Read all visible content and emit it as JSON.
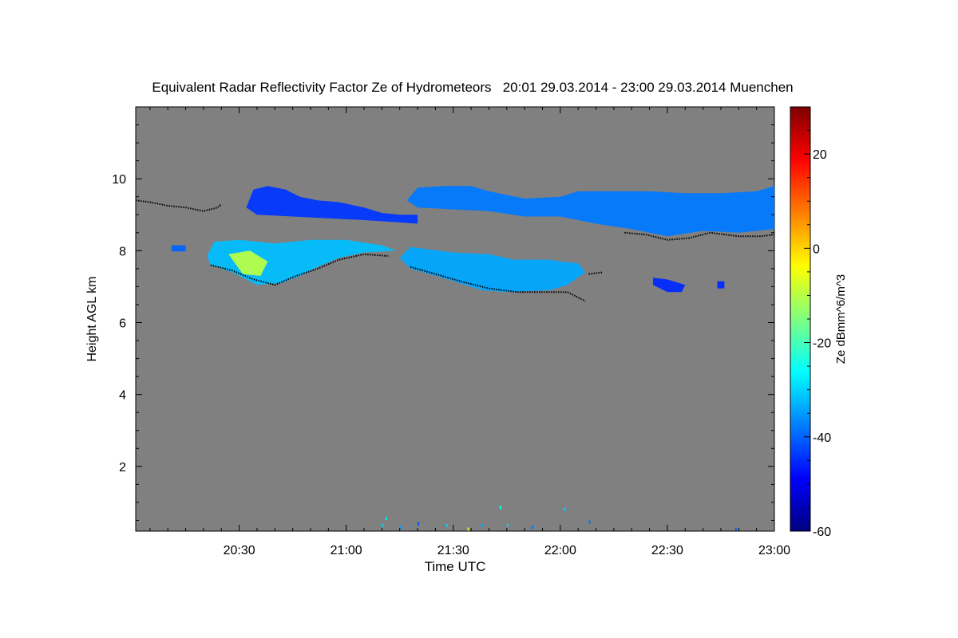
{
  "chart_data": {
    "type": "heatmap",
    "title": "Equivalent Radar Reflectivity Factor Ze of Hydrometeors   20:01 29.03.2014 - 23:00 29.03.2014 Muenchen",
    "xlabel": "Time UTC",
    "ylabel": "Height AGL km",
    "colorbar_label": "Ze dBmm^6/m^3",
    "x_range": [
      "20:01",
      "23:00"
    ],
    "x_ticks": [
      "20:30",
      "21:00",
      "21:30",
      "22:00",
      "22:30",
      "23:00"
    ],
    "y_range": [
      0.2,
      12
    ],
    "y_ticks": [
      "2",
      "4",
      "6",
      "8",
      "10"
    ],
    "colorbar_range": [
      -60,
      30
    ],
    "colorbar_ticks": [
      "-60",
      "-40",
      "-20",
      "0",
      "20"
    ],
    "background_color": "#808080",
    "colormap": [
      "#00007f",
      "#0000ff",
      "#007fff",
      "#00ffff",
      "#7fff7f",
      "#ffff00",
      "#ff7f00",
      "#ff0000",
      "#7f0000"
    ],
    "echo_regions": [
      {
        "name": "upper-cloud-west",
        "points": [
          [
            "20:32",
            9.2
          ],
          [
            "20:34",
            9.7
          ],
          [
            "20:38",
            9.8
          ],
          [
            "20:43",
            9.7
          ],
          [
            "20:47",
            9.5
          ],
          [
            "20:52",
            9.4
          ],
          [
            "20:58",
            9.35
          ],
          [
            "21:05",
            9.2
          ],
          [
            "21:10",
            9.05
          ],
          [
            "21:15",
            9.0
          ],
          [
            "21:20",
            9.0
          ],
          [
            "21:20",
            8.75
          ],
          [
            "21:13",
            8.8
          ],
          [
            "21:05",
            8.85
          ],
          [
            "20:55",
            8.9
          ],
          [
            "20:45",
            8.95
          ],
          [
            "20:35",
            9.0
          ]
        ],
        "dbz": -44
      },
      {
        "name": "upper-cloud-east",
        "points": [
          [
            "21:17",
            9.4
          ],
          [
            "21:20",
            9.75
          ],
          [
            "21:27",
            9.8
          ],
          [
            "21:35",
            9.8
          ],
          [
            "21:40",
            9.65
          ],
          [
            "21:50",
            9.45
          ],
          [
            "22:00",
            9.5
          ],
          [
            "22:05",
            9.65
          ],
          [
            "22:15",
            9.65
          ],
          [
            "22:25",
            9.65
          ],
          [
            "22:35",
            9.6
          ],
          [
            "22:45",
            9.6
          ],
          [
            "22:55",
            9.65
          ],
          [
            "23:00",
            9.8
          ],
          [
            "23:00",
            8.6
          ],
          [
            "22:50",
            8.5
          ],
          [
            "22:40",
            8.55
          ],
          [
            "22:30",
            8.4
          ],
          [
            "22:20",
            8.6
          ],
          [
            "22:10",
            8.75
          ],
          [
            "22:00",
            8.95
          ],
          [
            "21:50",
            8.95
          ],
          [
            "21:40",
            9.1
          ],
          [
            "21:30",
            9.15
          ],
          [
            "21:20",
            9.2
          ]
        ],
        "dbz": -38
      },
      {
        "name": "lower-cloud-west",
        "points": [
          [
            "20:21",
            7.85
          ],
          [
            "20:23",
            8.25
          ],
          [
            "20:30",
            8.3
          ],
          [
            "20:40",
            8.2
          ],
          [
            "20:50",
            8.3
          ],
          [
            "21:00",
            8.3
          ],
          [
            "21:10",
            8.15
          ],
          [
            "21:14",
            8.0
          ],
          [
            "21:05",
            7.95
          ],
          [
            "20:58",
            7.8
          ],
          [
            "20:52",
            7.55
          ],
          [
            "20:47",
            7.3
          ],
          [
            "20:42",
            7.1
          ],
          [
            "20:35",
            7.05
          ],
          [
            "20:28",
            7.4
          ],
          [
            "20:22",
            7.6
          ]
        ],
        "dbz": -32
      },
      {
        "name": "lower-cloud-core",
        "points": [
          [
            "20:27",
            7.9
          ],
          [
            "20:33",
            8.0
          ],
          [
            "20:38",
            7.7
          ],
          [
            "20:36",
            7.3
          ],
          [
            "20:31",
            7.35
          ]
        ],
        "dbz": -10
      },
      {
        "name": "lower-cloud-east",
        "points": [
          [
            "21:15",
            7.8
          ],
          [
            "21:18",
            8.1
          ],
          [
            "21:30",
            7.95
          ],
          [
            "21:40",
            7.9
          ],
          [
            "21:47",
            7.75
          ],
          [
            "21:57",
            7.75
          ],
          [
            "22:00",
            7.7
          ],
          [
            "22:05",
            7.65
          ],
          [
            "22:07",
            7.4
          ],
          [
            "22:02",
            7.05
          ],
          [
            "21:57",
            6.9
          ],
          [
            "21:45",
            6.85
          ],
          [
            "21:38",
            6.9
          ],
          [
            "21:27",
            7.25
          ],
          [
            "21:18",
            7.5
          ]
        ],
        "dbz": -34
      },
      {
        "name": "small-echo-west",
        "points": [
          [
            "20:11",
            8.15
          ],
          [
            "20:15",
            8.15
          ],
          [
            "20:15",
            7.98
          ],
          [
            "20:11",
            7.98
          ]
        ],
        "dbz": -40
      },
      {
        "name": "small-echo-east",
        "points": [
          [
            "22:26",
            7.25
          ],
          [
            "22:30",
            7.2
          ],
          [
            "22:35",
            7.05
          ],
          [
            "22:34",
            6.85
          ],
          [
            "22:30",
            6.85
          ],
          [
            "22:26",
            7.05
          ]
        ],
        "dbz": -45
      },
      {
        "name": "tiny-echo-east",
        "points": [
          [
            "22:44",
            7.15
          ],
          [
            "22:46",
            7.15
          ],
          [
            "22:46",
            6.95
          ],
          [
            "22:44",
            6.95
          ]
        ],
        "dbz": -45
      }
    ],
    "cloud_base_segments": [
      [
        [
          "20:01",
          9.4
        ],
        [
          "20:05",
          9.35
        ],
        [
          "20:10",
          9.25
        ],
        [
          "20:15",
          9.2
        ],
        [
          "20:20",
          9.1
        ],
        [
          "20:24",
          9.2
        ],
        [
          "20:25",
          9.3
        ]
      ],
      [
        [
          "20:22",
          7.6
        ],
        [
          "20:28",
          7.45
        ],
        [
          "20:34",
          7.2
        ],
        [
          "20:40",
          7.05
        ],
        [
          "20:46",
          7.3
        ],
        [
          "20:52",
          7.5
        ],
        [
          "20:58",
          7.75
        ],
        [
          "21:05",
          7.9
        ],
        [
          "21:12",
          7.85
        ]
      ],
      [
        [
          "21:18",
          7.55
        ],
        [
          "21:25",
          7.35
        ],
        [
          "21:32",
          7.15
        ],
        [
          "21:40",
          6.95
        ],
        [
          "21:48",
          6.85
        ],
        [
          "21:56",
          6.85
        ],
        [
          "22:02",
          6.85
        ],
        [
          "22:07",
          6.6
        ]
      ],
      [
        [
          "22:08",
          7.35
        ],
        [
          "22:12",
          7.4
        ]
      ],
      [
        [
          "22:18",
          8.5
        ],
        [
          "22:24",
          8.45
        ],
        [
          "22:30",
          8.3
        ],
        [
          "22:36",
          8.35
        ],
        [
          "22:42",
          8.5
        ],
        [
          "22:50",
          8.4
        ],
        [
          "22:56",
          8.4
        ],
        [
          "23:00",
          8.45
        ]
      ]
    ],
    "surface_echoes": [
      [
        "21:10",
        0.4,
        -30
      ],
      [
        "21:11",
        0.6,
        -28
      ],
      [
        "21:15",
        0.35,
        -35
      ],
      [
        "21:20",
        0.45,
        -42
      ],
      [
        "21:28",
        0.4,
        -30
      ],
      [
        "21:34",
        0.3,
        -8
      ],
      [
        "21:38",
        0.4,
        -35
      ],
      [
        "21:43",
        0.9,
        -25
      ],
      [
        "21:45",
        0.4,
        -30
      ],
      [
        "21:52",
        0.35,
        -38
      ],
      [
        "22:01",
        0.85,
        -30
      ],
      [
        "22:08",
        0.5,
        -38
      ],
      [
        "22:49",
        0.3,
        -40
      ]
    ]
  }
}
